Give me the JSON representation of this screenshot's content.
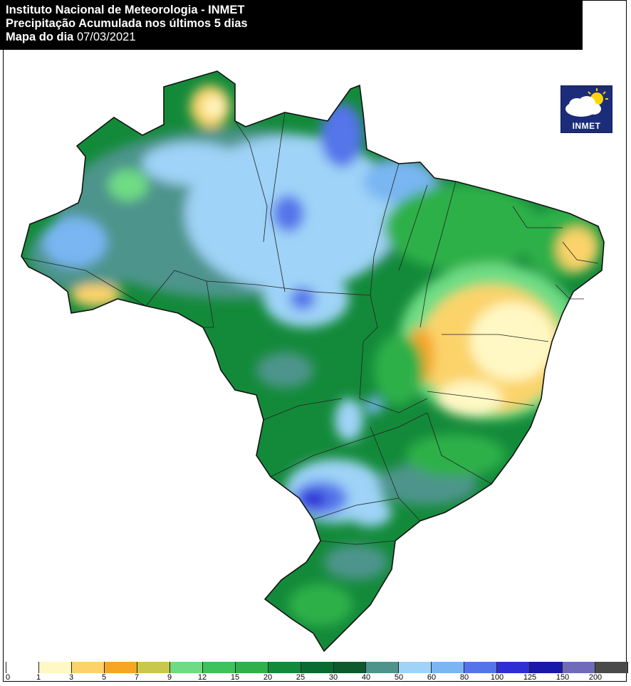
{
  "header": {
    "line1": "Instituto Nacional de Meteorologia - INMET",
    "line2": "Precipitação Acumulada nos últimos 5 dias",
    "line3_label": "Mapa do dia",
    "line3_date": "07/03/2021"
  },
  "logo": {
    "text": "INMET",
    "icon": "cloud-sun-icon",
    "bg_color": "#1b2c7a"
  },
  "legend": {
    "colors": [
      "#ffffff",
      "#fff8c4",
      "#fbd36a",
      "#f6a623",
      "#c9c84a",
      "#6fdc84",
      "#3ec25a",
      "#2fb04a",
      "#138a3a",
      "#0a6b30",
      "#0d5a2c",
      "#4e948c",
      "#9fd3f7",
      "#79b6f2",
      "#5474ea",
      "#2f2ed4",
      "#1a18a8",
      "#6f6bb8",
      "#4a4a4a"
    ],
    "labels": [
      "0",
      "1",
      "3",
      "5",
      "7",
      "9",
      "12",
      "15",
      "20",
      "25",
      "30",
      "40",
      "50",
      "60",
      "80",
      "100",
      "125",
      "150",
      "200"
    ]
  },
  "map": {
    "country": "Brasil",
    "base_color": "#138a3a",
    "outline_color": "#111111"
  }
}
